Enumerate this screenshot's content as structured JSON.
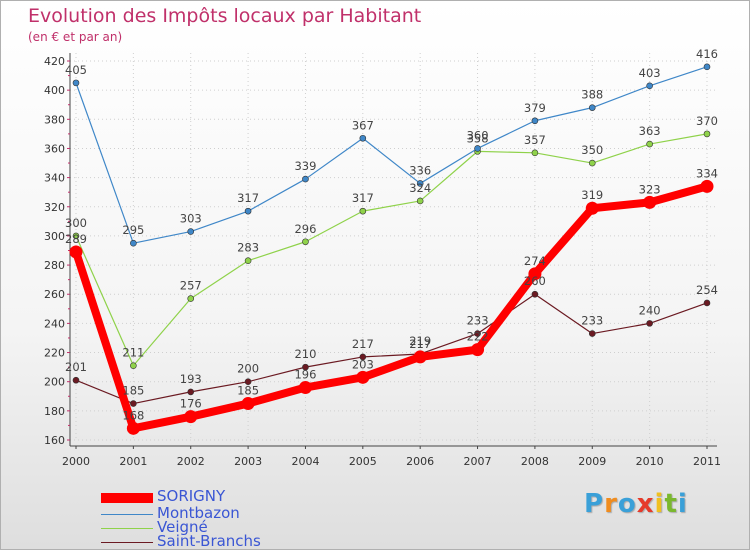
{
  "chart_data": {
    "type": "line",
    "title": "Evolution des Impôts locaux par Habitant",
    "subtitle": "(en € et par an)",
    "xlabel": "",
    "ylabel": "",
    "categories": [
      "2000",
      "2001",
      "2002",
      "2003",
      "2004",
      "2005",
      "2006",
      "2007",
      "2008",
      "2009",
      "2010",
      "2011"
    ],
    "ylim": [
      160,
      420
    ],
    "yticks": [
      160,
      180,
      200,
      220,
      240,
      260,
      280,
      300,
      320,
      340,
      360,
      380,
      400,
      420
    ],
    "series": [
      {
        "name": "Saint-Branchs",
        "color": "#6b1a22",
        "values": [
          201,
          185,
          193,
          200,
          210,
          217,
          219,
          233,
          260,
          233,
          240,
          254
        ]
      },
      {
        "name": "Veigné",
        "color": "#8fd24a",
        "values": [
          300,
          211,
          257,
          283,
          296,
          317,
          324,
          358,
          357,
          350,
          363,
          370
        ]
      },
      {
        "name": "Montbazon",
        "color": "#3f87c8",
        "values": [
          405,
          295,
          303,
          317,
          339,
          367,
          336,
          360,
          379,
          388,
          403,
          416
        ]
      },
      {
        "name": "SORIGNY",
        "color": "#ff0000",
        "values": [
          289,
          168,
          176,
          185,
          196,
          203,
          217,
          222,
          274,
          319,
          323,
          334
        ]
      }
    ],
    "legend": [
      "SORIGNY",
      "Montbazon",
      "Veigné",
      "Saint-Branchs"
    ]
  },
  "logo": {
    "text": "Proxiti",
    "letters": [
      "P",
      "r",
      "o",
      "x",
      "i",
      "t",
      "i"
    ],
    "colors": [
      "#3aa0d8",
      "#f08c1e",
      "#3aa0d8",
      "#e63a2a",
      "#f0c020",
      "#7ab82e",
      "#3aa0d8"
    ]
  }
}
